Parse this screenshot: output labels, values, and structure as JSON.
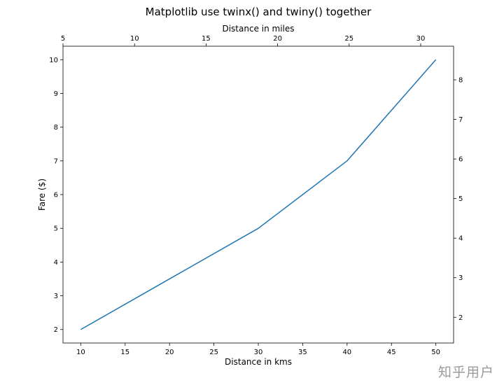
{
  "chart_data": {
    "type": "line",
    "title": "Matplotlib use twinx() and twiny() together",
    "xlabel": "Distance in kms",
    "ylabel": "Fare ($)",
    "top_xlabel": "Distance in miles",
    "x": [
      10,
      20,
      30,
      40,
      50
    ],
    "series": [
      {
        "values": [
          2,
          3.5,
          5,
          7,
          10
        ],
        "color": "#1f77b4"
      }
    ],
    "xlim": [
      8,
      52
    ],
    "ylim": [
      1.6,
      10.4
    ],
    "xticks": [
      10,
      15,
      20,
      25,
      30,
      35,
      40,
      45,
      50
    ],
    "yticks": [
      2,
      3,
      4,
      5,
      6,
      7,
      8,
      9,
      10
    ],
    "top_xlim": [
      5,
      32.3
    ],
    "top_xticks": [
      5,
      10,
      15,
      20,
      25,
      30
    ],
    "right_ylim": [
      1.35,
      8.85
    ],
    "right_yticks": [
      2,
      3,
      4,
      5,
      6,
      7,
      8
    ],
    "grid": false,
    "legend": "none"
  },
  "watermark": "知乎用户"
}
